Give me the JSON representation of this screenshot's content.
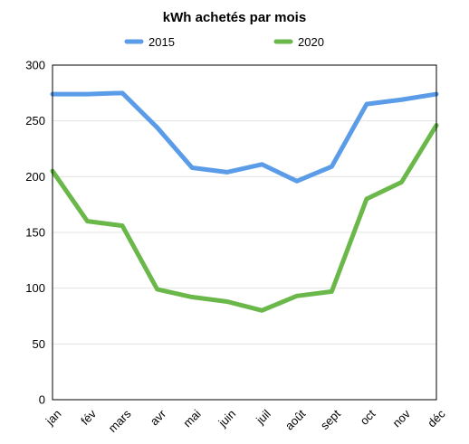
{
  "chart_data": {
    "type": "line",
    "title": "kWh achetés par mois",
    "xlabel": "",
    "ylabel": "",
    "categories": [
      "jan",
      "fév",
      "mars",
      "avr",
      "mai",
      "juin",
      "juil",
      "août",
      "sept",
      "oct",
      "nov",
      "déc"
    ],
    "ylim": [
      0,
      300
    ],
    "yticks": [
      0,
      50,
      100,
      150,
      200,
      250,
      300
    ],
    "grid": true,
    "legend": "top",
    "series": [
      {
        "name": "2015",
        "color": "#5b9ce8",
        "values": [
          274,
          274,
          275,
          244,
          208,
          204,
          211,
          196,
          209,
          265,
          269,
          274
        ]
      },
      {
        "name": "2020",
        "color": "#6ab84a",
        "values": [
          205,
          160,
          156,
          99,
          92,
          88,
          80,
          93,
          97,
          180,
          195,
          246
        ]
      }
    ]
  }
}
